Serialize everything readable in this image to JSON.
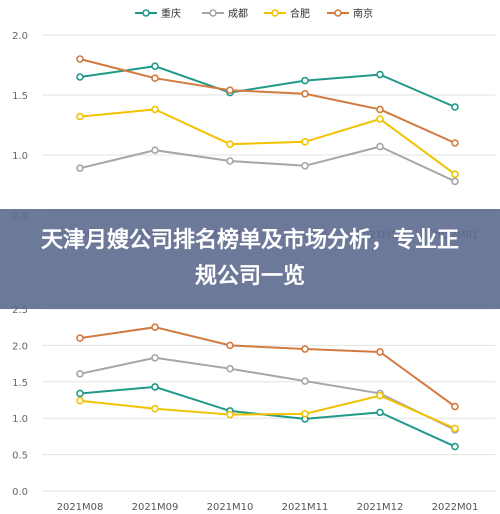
{
  "banner": {
    "title": "天津月嫂公司排名榜单及市场分析，专业正规公司一览"
  },
  "chart_data": [
    {
      "type": "line",
      "legend_position": "top",
      "grid": true,
      "categories": [
        "2021M08",
        "2021M09",
        "2021M10",
        "2021M11",
        "2021M12",
        "2022M01"
      ],
      "ylim": [
        0.5,
        2.0
      ],
      "yticks": [
        "0.5",
        "1.0",
        "1.5",
        "2.0"
      ],
      "series": [
        {
          "name": "重庆",
          "color": "#1f9a8a",
          "values": [
            1.65,
            1.74,
            1.52,
            1.62,
            1.67,
            1.4
          ]
        },
        {
          "name": "成都",
          "color": "#a6a6a6",
          "values": [
            0.89,
            1.04,
            0.95,
            0.91,
            1.07,
            0.78
          ]
        },
        {
          "name": "合肥",
          "color": "#f2c200",
          "values": [
            1.32,
            1.38,
            1.09,
            1.11,
            1.3,
            0.84
          ]
        },
        {
          "name": "南京",
          "color": "#d27a40",
          "values": [
            1.8,
            1.64,
            1.54,
            1.51,
            1.38,
            1.1
          ]
        }
      ]
    },
    {
      "type": "line",
      "legend_position": "top",
      "grid": true,
      "categories": [
        "2021M08",
        "2021M09",
        "2021M10",
        "2021M11",
        "2021M12",
        "2022M01"
      ],
      "ylim": [
        0.0,
        2.5
      ],
      "yticks": [
        "0.0",
        "0.5",
        "1.0",
        "1.5",
        "2.0",
        "2.5"
      ],
      "series": [
        {
          "name": "",
          "color": "#1f9a8a",
          "values": [
            1.34,
            1.43,
            1.1,
            0.99,
            1.08,
            0.61
          ]
        },
        {
          "name": "",
          "color": "#a6a6a6",
          "values": [
            1.61,
            1.83,
            1.68,
            1.51,
            1.34,
            0.84
          ]
        },
        {
          "name": "",
          "color": "#f2c200",
          "values": [
            1.24,
            1.13,
            1.05,
            1.06,
            1.31,
            0.86
          ]
        },
        {
          "name": "",
          "color": "#d27a40",
          "values": [
            2.1,
            2.25,
            2.0,
            1.95,
            1.91,
            1.16
          ]
        }
      ]
    }
  ]
}
